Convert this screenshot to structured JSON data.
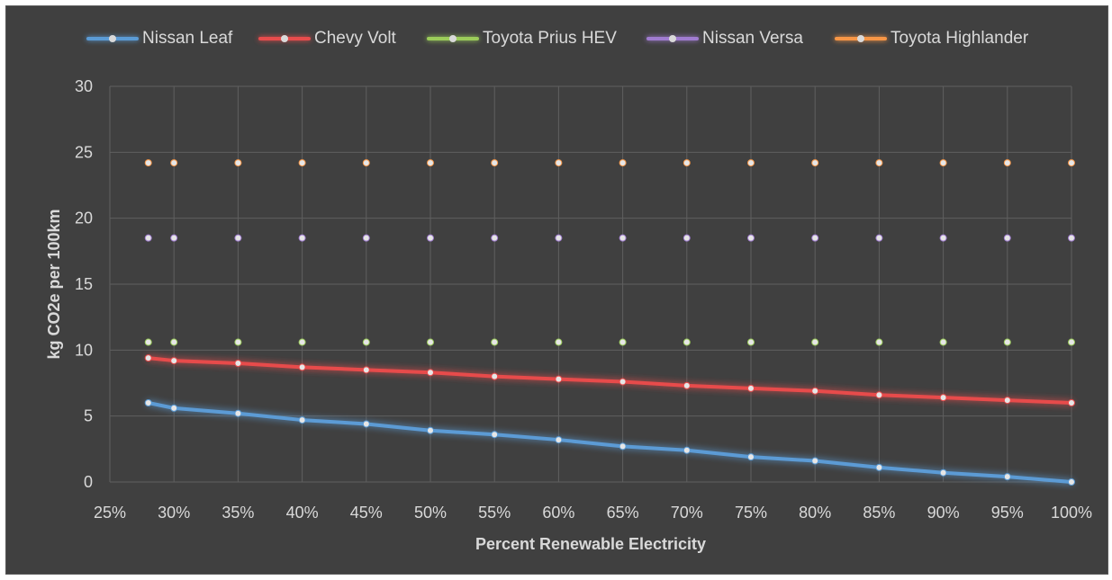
{
  "chart_data": {
    "type": "line",
    "title": "",
    "xlabel": "Percent Renewable Electricity",
    "ylabel": "kg CO2e per 100km",
    "x": [
      28,
      30,
      35,
      40,
      45,
      50,
      55,
      60,
      65,
      70,
      75,
      80,
      85,
      90,
      95,
      100
    ],
    "xlim": [
      25,
      100
    ],
    "x_ticks": [
      25,
      30,
      35,
      40,
      45,
      50,
      55,
      60,
      65,
      70,
      75,
      80,
      85,
      90,
      95,
      100
    ],
    "x_tick_labels": [
      "25%",
      "30%",
      "35%",
      "40%",
      "45%",
      "50%",
      "55%",
      "60%",
      "65%",
      "70%",
      "75%",
      "80%",
      "85%",
      "90%",
      "95%",
      "100%"
    ],
    "ylim": [
      0,
      30
    ],
    "y_ticks": [
      0,
      5,
      10,
      15,
      20,
      25,
      30
    ],
    "y_tick_labels": [
      "0",
      "5",
      "10",
      "15",
      "20",
      "25",
      "30"
    ],
    "grid": true,
    "legend_position": "top",
    "series": [
      {
        "name": "Nissan Leaf",
        "color": "#5b9bd5",
        "values": [
          6.0,
          5.6,
          5.2,
          4.7,
          4.4,
          3.9,
          3.6,
          3.2,
          2.7,
          2.4,
          1.9,
          1.6,
          1.1,
          0.7,
          0.4,
          0.0
        ]
      },
      {
        "name": "Chevy Volt",
        "color": "#e74c4c",
        "values": [
          9.4,
          9.2,
          9.0,
          8.7,
          8.5,
          8.3,
          8.0,
          7.8,
          7.6,
          7.3,
          7.1,
          6.9,
          6.6,
          6.4,
          6.2,
          6.0
        ]
      },
      {
        "name": "Toyota Prius HEV",
        "color": "#9bcc5a",
        "values": [
          10.6,
          10.6,
          10.6,
          10.6,
          10.6,
          10.6,
          10.6,
          10.6,
          10.6,
          10.6,
          10.6,
          10.6,
          10.6,
          10.6,
          10.6,
          10.6
        ]
      },
      {
        "name": "Nissan Versa",
        "color": "#a07cd0",
        "values": [
          18.5,
          18.5,
          18.5,
          18.5,
          18.5,
          18.5,
          18.5,
          18.5,
          18.5,
          18.5,
          18.5,
          18.5,
          18.5,
          18.5,
          18.5,
          18.5
        ]
      },
      {
        "name": "Toyota Highlander",
        "color": "#f79646",
        "values": [
          24.2,
          24.2,
          24.2,
          24.2,
          24.2,
          24.2,
          24.2,
          24.2,
          24.2,
          24.2,
          24.2,
          24.2,
          24.2,
          24.2,
          24.2,
          24.2
        ]
      }
    ]
  }
}
